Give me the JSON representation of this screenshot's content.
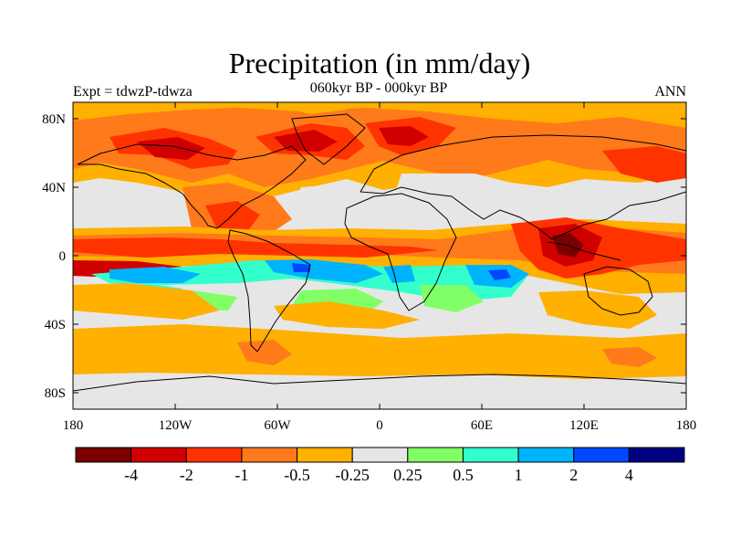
{
  "header": {
    "title": "Precipitation (in mm/day)",
    "left_label": "Expt = tdwzP-tdwza",
    "center_label": "060kyr BP - 000kyr BP",
    "right_label": "ANN"
  },
  "axes": {
    "lat_labels": [
      "80N",
      "40N",
      "0",
      "40S",
      "80S"
    ],
    "lon_labels": [
      "180",
      "120W",
      "60W",
      "0",
      "60E",
      "120E",
      "180"
    ]
  },
  "colorbar": {
    "colors": [
      "#7a0000",
      "#d10000",
      "#ff3300",
      "#ff7a1a",
      "#ffb000",
      "#e6e6e6",
      "#80ff66",
      "#33ffcc",
      "#00b3ff",
      "#0047ff",
      "#000080"
    ],
    "labels": [
      "-4",
      "-2",
      "-1",
      "-0.5",
      "-0.25",
      "0.25",
      "0.5",
      "1",
      "2",
      "4"
    ]
  },
  "map": {
    "background_color": "#e6e6e6",
    "coastline_color": "#000000"
  }
}
